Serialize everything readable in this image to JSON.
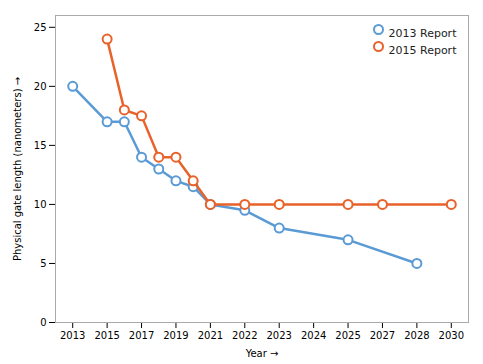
{
  "chart_data": {
    "type": "line",
    "x_label": "Year",
    "y_label": "Physical gate length (nanometers)",
    "series": [
      {
        "name": "2013 Report",
        "color": "#5B9BD5",
        "marker": "o",
        "x": [
          2013,
          2015,
          2016,
          2017,
          2018,
          2019,
          2020,
          2021,
          2022,
          2023,
          2025,
          2028
        ],
        "values": [
          20,
          17,
          17,
          14,
          13,
          12,
          11.5,
          10,
          9.5,
          8,
          7,
          5
        ]
      },
      {
        "name": "2015 Report",
        "color": "#E8622A",
        "marker": "o",
        "x": [
          2015,
          2016,
          2017,
          2018,
          2019,
          2020,
          2021,
          2022,
          2023,
          2025,
          2027,
          2030
        ],
        "values": [
          24,
          18,
          17.5,
          14,
          14,
          12,
          10,
          10,
          10,
          10,
          10,
          10
        ]
      }
    ],
    "xlim": [
      2012,
      2031
    ],
    "xticks": [
      2013,
      2015,
      2017,
      2019,
      2021,
      2022,
      2023,
      2024,
      2025,
      2027,
      2028,
      2030
    ],
    "ylim": [
      0,
      26
    ],
    "yticks": [
      0,
      5,
      10,
      15,
      20,
      25
    ],
    "legend": "upper right"
  }
}
